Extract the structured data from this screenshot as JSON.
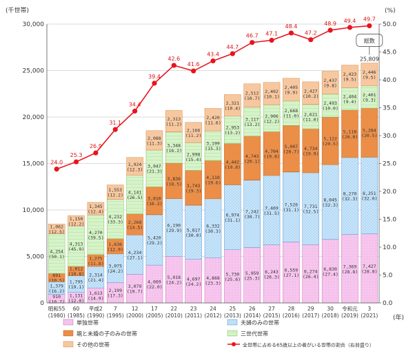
{
  "chart_data": {
    "type": "bar",
    "stacked": true,
    "left_unit": "(千世帯)",
    "right_unit": "(%)",
    "x_unit": "(年)",
    "yleft_ticks": [
      "0",
      "5,000",
      "10,000",
      "15,000",
      "20,000",
      "25,000",
      "30,000"
    ],
    "yright_ticks": [
      "0.0",
      "5.0",
      "10.0",
      "15.0",
      "20.0",
      "25.0",
      "30.0",
      "35.0",
      "40.0",
      "45.0",
      "50.0"
    ],
    "ylim_left": [
      0,
      30000
    ],
    "ylim_right": [
      0,
      50
    ],
    "categories": [
      {
        "era": "昭和55",
        "year": "(1980)"
      },
      {
        "era": "60",
        "year": "(1985)"
      },
      {
        "era": "平成2",
        "year": "(1990)"
      },
      {
        "era": "7",
        "year": "(1995)"
      },
      {
        "era": "12",
        "year": "(2000)"
      },
      {
        "era": "17",
        "year": "(2005)"
      },
      {
        "era": "22",
        "year": "(2010)"
      },
      {
        "era": "23",
        "year": "(2011)"
      },
      {
        "era": "24",
        "year": "(2012)"
      },
      {
        "era": "25",
        "year": "(2013)"
      },
      {
        "era": "26",
        "year": "(2014)"
      },
      {
        "era": "27",
        "year": "(2015)"
      },
      {
        "era": "28",
        "year": "(2016)"
      },
      {
        "era": "29",
        "year": "(2017)"
      },
      {
        "era": "30",
        "year": "(2018)"
      },
      {
        "era": "令和元",
        "year": "(2019)"
      },
      {
        "era": "3",
        "year": "(2021)"
      }
    ],
    "series": [
      {
        "name": "単独世帯",
        "color": "#f6c6ee",
        "values": [
          910,
          1131,
          1613,
          2199,
          3079,
          4069,
          5018,
          4697,
          4868,
          5730,
          5959,
          6243,
          6559,
          6274,
          6830,
          7369,
          7427
        ],
        "labels": [
          "910",
          "1,131",
          "1,613",
          "2,199",
          "3,079",
          "4,069",
          "5,018",
          "4,697",
          "4,868",
          "5,730",
          "5,959",
          "6,243",
          "6,559",
          "6,274",
          "6,830",
          "7,369",
          "7,427"
        ],
        "pcts": [
          "(10.7)",
          "(12.0)",
          "(14.9)",
          "(17.3)",
          "(19.7)",
          "(22.0)",
          "(24.2)",
          "(24.2)",
          "(23.3)",
          "(25.6)",
          "(25.3)",
          "(26.3)",
          "(27.1)",
          "(26.4)",
          "(27.4)",
          "(28.8)",
          "(28.8)"
        ]
      },
      {
        "name": "夫婦のみの世帯",
        "color": "#c6e4fa",
        "values": [
          1379,
          1795,
          2314,
          3075,
          4234,
          5420,
          6190,
          5817,
          6332,
          6974,
          7242,
          7469,
          7526,
          7731,
          8045,
          8270,
          8251
        ],
        "labels": [
          "1,379",
          "1,795",
          "2,314",
          "3,075",
          "4,234",
          "5,420",
          "6,190",
          "5,817",
          "6,332",
          "6,974",
          "7,242",
          "7,469",
          "7,526",
          "7,731",
          "8,045",
          "8,270",
          "8,251"
        ],
        "pcts": [
          "(16.2)",
          "(19.1)",
          "(21.4)",
          "(24.2)",
          "(27.1)",
          "(29.2)",
          "(29.9)",
          "(30.0)",
          "(30.3)",
          "(31.1)",
          "(30.7)",
          "(31.5)",
          "(31.1)",
          "(32.5)",
          "(32.3)",
          "(32.3)",
          "(32.0)"
        ]
      },
      {
        "name": "親と未婚の子のみの世帯",
        "color": "#f6a25a",
        "values": [
          891,
          1012,
          1275,
          1636,
          2268,
          3010,
          3836,
          3743,
          4110,
          4442,
          4743,
          4704,
          5007,
          4734,
          5122,
          5118,
          5284
        ],
        "labels": [
          "891",
          "1,012",
          "1,275",
          "1,636",
          "2,268",
          "3,010",
          "3,836",
          "3,743",
          "4,110",
          "4,442",
          "4,743",
          "4,704",
          "5,007",
          "4,734",
          "5,122",
          "5,118",
          "5,284"
        ],
        "pcts": [
          "(10.5)",
          "(10.8)",
          "(11.8)",
          "(12.9)",
          "(14.5)",
          "(16.2)",
          "(18.5)",
          "(19.3)",
          "(19.6)",
          "(19.8)",
          "(20.1)",
          "(19.8)",
          "(20.7)",
          "(19.9)",
          "(20.5)",
          "(20.0)",
          "(20.5)"
        ]
      },
      {
        "name": "三世代世帯",
        "color": "#d2f3c6",
        "values": [
          4254,
          4313,
          4270,
          4232,
          4141,
          3947,
          3348,
          2998,
          3199,
          2953,
          3117,
          2906,
          2668,
          2621,
          2493,
          2404,
          2401
        ],
        "labels": [
          "4,254",
          "4,313",
          "4,270",
          "4,232",
          "4,141",
          "3,947",
          "3,348",
          "2,998",
          "3,199",
          "2,953",
          "3,117",
          "2,906",
          "2,668",
          "2,621",
          "2,493",
          "2,404",
          "2,401"
        ],
        "pcts": [
          "(50.1)",
          "(45.9)",
          "(39.5)",
          "(33.3)",
          "(26.5)",
          "(21.3)",
          "(16.2)",
          "(15.4)",
          "(15.3)",
          "(13.2)",
          "(13.2)",
          "(12.2)",
          "(11.0)",
          "(11.0)",
          "(10.0)",
          "(9.4)",
          "(9.3)"
        ]
      },
      {
        "name": "その他の世帯",
        "color": "#fbd7b5",
        "values": [
          1062,
          1150,
          1345,
          1553,
          1924,
          2088,
          2313,
          2166,
          2420,
          2321,
          2512,
          2402,
          2405,
          2427,
          2437,
          2423,
          2446
        ],
        "labels": [
          "1,062",
          "1,150",
          "1,345",
          "1,553",
          "1,924",
          "2,088",
          "2,313",
          "2,166",
          "2,420",
          "2,321",
          "2,512",
          "2,402",
          "2,405",
          "2,427",
          "2,437",
          "2,423",
          "2,446"
        ],
        "pcts": [
          "(12.5)",
          "(12.2)",
          "(12.4)",
          "(12.2)",
          "(12.3)",
          "(11.3)",
          "(11.2)",
          "(11.2)",
          "(11.6)",
          "(10.4)",
          "(10.7)",
          "(10.1)",
          "(9.9)",
          "(10.2)",
          "(9.8)",
          "(9.5)",
          "(9.5)"
        ]
      }
    ],
    "line": {
      "name": "全世帯に占める65歳以上の者がいる世帯の割合（右目盛り）",
      "color": "#e8141e",
      "values": [
        24.0,
        25.3,
        26.9,
        31.1,
        34.4,
        39.4,
        42.6,
        41.6,
        43.4,
        44.7,
        46.7,
        47.1,
        48.4,
        47.2,
        48.9,
        49.4,
        49.7
      ],
      "labels": [
        "24.0",
        "25.3",
        "26.9",
        "31.1",
        "34.4",
        "39.4",
        "42.6",
        "41.6",
        "43.4",
        "44.7",
        "46.7",
        "47.1",
        "48.4",
        "47.2",
        "48.9",
        "49.4",
        "49.7"
      ]
    },
    "total": {
      "label": "総数",
      "value": 25809,
      "value_label": "25,809"
    }
  }
}
